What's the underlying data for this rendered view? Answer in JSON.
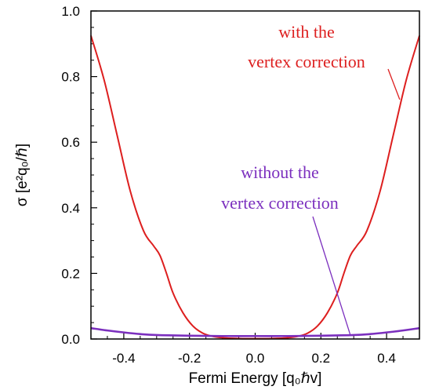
{
  "chart_data": {
    "type": "line",
    "xlabel": "Fermi Energy [q₀ℏv]",
    "ylabel": "σ [e²q₀/ℏ]",
    "xlim": [
      -0.5,
      0.5
    ],
    "ylim": [
      0.0,
      1.0
    ],
    "x_ticks": [
      -0.4,
      -0.2,
      0.0,
      0.2,
      0.4
    ],
    "x_tick_labels": [
      "-0.4",
      "-0.2",
      "0.0",
      "0.2",
      "0.4"
    ],
    "y_ticks": [
      0.0,
      0.2,
      0.4,
      0.6,
      0.8,
      1.0
    ],
    "y_tick_labels": [
      "0.0",
      "0.2",
      "0.4",
      "0.6",
      "0.8",
      "1.0"
    ],
    "grid": false,
    "series": [
      {
        "color": "#dd1f1f",
        "x": [
          -0.5,
          -0.46,
          -0.42,
          -0.38,
          -0.34,
          -0.31,
          -0.29,
          -0.27,
          -0.25,
          -0.22,
          -0.19,
          -0.16,
          -0.13,
          -0.1,
          -0.07,
          -0.04,
          0.0,
          0.04,
          0.07,
          0.1,
          0.13,
          0.16,
          0.19,
          0.22,
          0.25,
          0.27,
          0.29,
          0.31,
          0.34,
          0.38,
          0.42,
          0.46,
          0.5
        ],
        "values": [
          0.925,
          0.79,
          0.62,
          0.45,
          0.33,
          0.285,
          0.255,
          0.2,
          0.14,
          0.08,
          0.04,
          0.018,
          0.008,
          0.004,
          0.002,
          0.001,
          0.001,
          0.001,
          0.002,
          0.004,
          0.008,
          0.018,
          0.04,
          0.08,
          0.14,
          0.2,
          0.255,
          0.285,
          0.33,
          0.45,
          0.62,
          0.79,
          0.925
        ]
      },
      {
        "color": "#7b2fbe",
        "x": [
          -0.5,
          -0.45,
          -0.4,
          -0.35,
          -0.3,
          -0.2,
          -0.1,
          0.0,
          0.1,
          0.2,
          0.3,
          0.35,
          0.4,
          0.45,
          0.5
        ],
        "values": [
          0.033,
          0.026,
          0.02,
          0.015,
          0.012,
          0.01,
          0.009,
          0.009,
          0.009,
          0.01,
          0.012,
          0.015,
          0.02,
          0.026,
          0.033
        ]
      }
    ],
    "annotations": [
      {
        "lines": [
          "with the",
          "vertex correction"
        ],
        "color": "#dd1f1f",
        "points_to": [
          0.44,
          0.73
        ]
      },
      {
        "lines": [
          "without the",
          "vertex correction"
        ],
        "color": "#7b2fbe",
        "points_to": [
          0.29,
          0.011
        ]
      }
    ]
  }
}
